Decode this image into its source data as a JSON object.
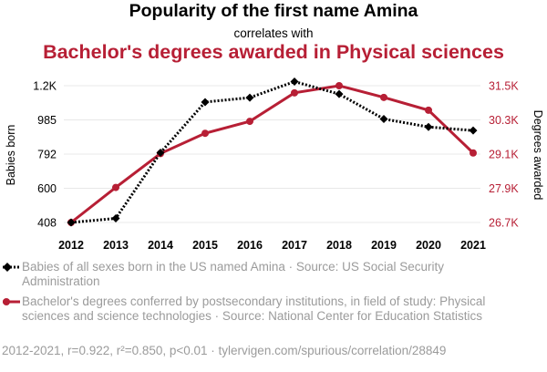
{
  "header": {
    "title": "Popularity of the first name Amina",
    "connector": "correlates with",
    "subtitle": "Bachelor's degrees awarded in Physical sciences"
  },
  "colors": {
    "series1": "#000000",
    "series2": "#b71f35",
    "grid": "#e8e8e8",
    "muted": "#9b9b9b"
  },
  "chart_data": {
    "type": "line",
    "x": [
      2012,
      2013,
      2014,
      2015,
      2016,
      2017,
      2018,
      2019,
      2020,
      2021
    ],
    "series": [
      {
        "name": "Babies of all sexes born in the US named Amina · Source: US Social Security Administration",
        "axis": "left",
        "style": "dotted",
        "values": [
          408,
          431,
          800,
          1085,
          1110,
          1200,
          1130,
          990,
          945,
          925
        ]
      },
      {
        "name": "Bachelor's degrees conferred by postsecondary institutions, in field of study: Physical sciences and science technologies · Source: National Center for Education Statistics",
        "axis": "right",
        "style": "solid",
        "values": [
          26700,
          27930,
          29120,
          29830,
          30250,
          31250,
          31500,
          31090,
          30640,
          29140
        ]
      }
    ],
    "ylabel_left": "Babies born",
    "ylabel_right": "Degrees awarded",
    "yticks_left": [
      "408",
      "600",
      "792",
      "985",
      "1.2K"
    ],
    "yticks_right": [
      "26.7K",
      "27.9K",
      "29.1K",
      "30.3K",
      "31.5K"
    ],
    "xticks": [
      "2012",
      "2013",
      "2014",
      "2015",
      "2016",
      "2017",
      "2018",
      "2019",
      "2020",
      "2021"
    ],
    "ylim_left": [
      408,
      1177
    ],
    "ylim_right": [
      26700,
      31500
    ],
    "grid": true,
    "legend_position": "bottom"
  },
  "footer": "2012-2021, r=0.922, r²=0.850, p<0.01 · tylervigen.com/spurious/correlation/28849"
}
